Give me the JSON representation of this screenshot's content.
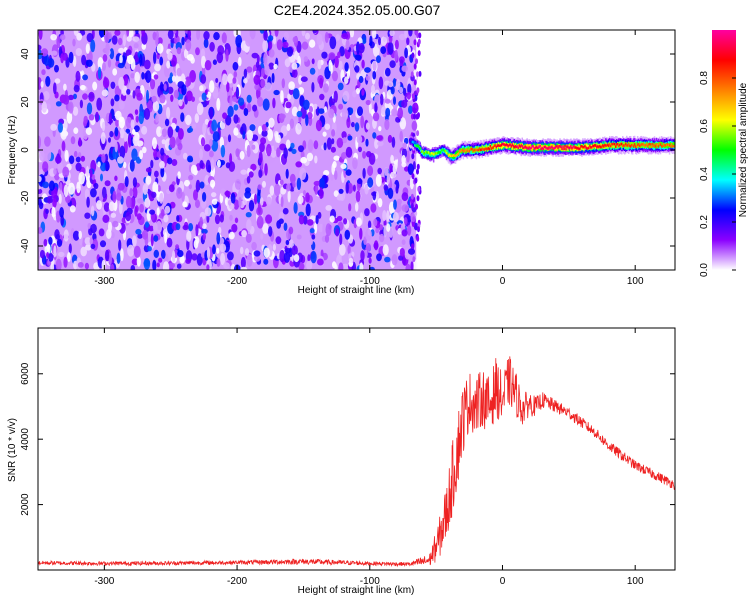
{
  "title": "C2E4.2024.352.05.00.G07",
  "chart_data": [
    {
      "type": "heatmap",
      "xlabel": "Height of straight line (km)",
      "ylabel": "Frequency (Hz)",
      "xlim": [
        -350,
        130
      ],
      "ylim": [
        -50,
        50
      ],
      "xticks": [
        -300,
        -200,
        -100,
        0,
        100
      ],
      "yticks": [
        -40,
        -20,
        0,
        20,
        40
      ],
      "noise_region_x": [
        -350,
        -65
      ],
      "noise_amplitude_range": [
        0.0,
        0.3
      ],
      "signal_ridge": [
        {
          "x": -70,
          "y": 4,
          "amp": 0.2
        },
        {
          "x": -65,
          "y": 2,
          "amp": 0.45
        },
        {
          "x": -60,
          "y": -1,
          "amp": 0.55
        },
        {
          "x": -52,
          "y": -2,
          "amp": 0.6
        },
        {
          "x": -45,
          "y": 0,
          "amp": 0.5
        },
        {
          "x": -38,
          "y": -3,
          "amp": 0.7
        },
        {
          "x": -30,
          "y": 0,
          "amp": 0.75
        },
        {
          "x": -20,
          "y": 0,
          "amp": 0.8
        },
        {
          "x": -10,
          "y": 1,
          "amp": 0.85
        },
        {
          "x": 0,
          "y": 2,
          "amp": 0.9
        },
        {
          "x": 20,
          "y": 1,
          "amp": 0.95
        },
        {
          "x": 40,
          "y": 1,
          "amp": 0.95
        },
        {
          "x": 60,
          "y": 1,
          "amp": 0.9
        },
        {
          "x": 80,
          "y": 2,
          "amp": 0.85
        },
        {
          "x": 100,
          "y": 2,
          "amp": 0.8
        },
        {
          "x": 130,
          "y": 2,
          "amp": 0.75
        }
      ],
      "colorbar": {
        "label": "Normalized spectral amplitude",
        "range": [
          0.0,
          1.0
        ],
        "ticks": [
          "0.0",
          "0.2",
          "0.4",
          "0.6",
          "0.8"
        ],
        "colors": [
          "#ffffff",
          "#8b00ff",
          "#0000ff",
          "#00ffff",
          "#00ff00",
          "#ffff00",
          "#ff8000",
          "#ff0000",
          "#ff00a0"
        ]
      }
    },
    {
      "type": "line",
      "xlabel": "Height of straight line (km)",
      "ylabel": "SNR (10 * v/v)",
      "xlim": [
        -350,
        130
      ],
      "ylim": [
        0,
        7400
      ],
      "xticks": [
        -300,
        -200,
        -100,
        0,
        100
      ],
      "yticks": [
        2000,
        4000,
        6000
      ],
      "series": [
        {
          "color": "#ee2222",
          "x": [
            -350,
            -300,
            -250,
            -200,
            -150,
            -100,
            -70,
            -55,
            -48,
            -42,
            -36,
            -30,
            -25,
            -20,
            -15,
            -10,
            -5,
            0,
            5,
            10,
            15,
            20,
            25,
            30,
            40,
            50,
            60,
            70,
            80,
            90,
            100,
            110,
            120,
            130
          ],
          "y": [
            220,
            200,
            210,
            230,
            260,
            200,
            180,
            300,
            900,
            1800,
            3200,
            4600,
            5200,
            5000,
            5300,
            5000,
            5600,
            5200,
            5800,
            5400,
            4900,
            5100,
            5000,
            5200,
            5000,
            4800,
            4500,
            4200,
            3800,
            3500,
            3200,
            3000,
            2800,
            2600
          ],
          "noise_amplitude": [
            60,
            60,
            60,
            60,
            90,
            60,
            60,
            200,
            600,
            900,
            1200,
            1100,
            900,
            900,
            900,
            900,
            900,
            800,
            800,
            700,
            500,
            400,
            300,
            250,
            200,
            180,
            170,
            160,
            160,
            160,
            150,
            150,
            150,
            150
          ]
        }
      ]
    }
  ]
}
